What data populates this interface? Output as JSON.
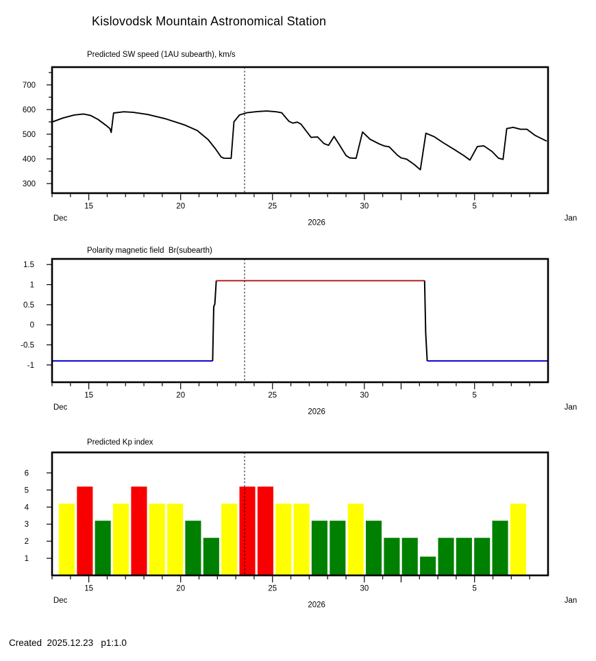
{
  "page": {
    "title": "Kislovodsk Mountain Astronomical Station",
    "created_line": "Created  2025.12.23   p1:1.0",
    "background": "#ffffff",
    "text_color": "#000000"
  },
  "colors": {
    "axis": "#000000",
    "sw_line": "#000000",
    "now_line": "#000000",
    "polarity_positive": "#b22222",
    "polarity_negative": "#0000cc",
    "polarity_transition": "#000000",
    "kp_yellow": "#ffff00",
    "kp_red": "#f80000",
    "kp_green": "#008000"
  },
  "now_marker_day": 23.48,
  "time_axis": {
    "day_min": 13,
    "day_max": 40,
    "minor_tick_step": 1,
    "major_ticks": [
      {
        "day": 15,
        "label": "15"
      },
      {
        "day": 20,
        "label": "20"
      },
      {
        "day": 25,
        "label": "25"
      },
      {
        "day": 30,
        "label": "30"
      },
      {
        "day": 32,
        "label": ""
      },
      {
        "day": 36,
        "label": "5"
      }
    ],
    "months": [
      {
        "label": "Dec",
        "day": 13.45
      },
      {
        "label": "Jan",
        "day": 41.23
      }
    ],
    "year": {
      "label": "2026",
      "day": 27.4
    }
  },
  "chart_data": [
    {
      "type": "line",
      "title": "Predicted SW speed (1AU subearth), km/s",
      "ylabel": "km/s",
      "ylim": [
        261,
        772
      ],
      "yticks": [
        {
          "v": 300,
          "label": "300"
        },
        {
          "v": 400,
          "label": "400"
        },
        {
          "v": 500,
          "label": "500"
        },
        {
          "v": 600,
          "label": "600"
        },
        {
          "v": 700,
          "label": "700"
        }
      ],
      "yticks_minor": [
        350,
        450,
        550,
        650,
        750
      ],
      "line_color": "sw_line",
      "x_days": [
        12.98,
        13.6,
        14.2,
        14.7,
        15.1,
        15.5,
        15.9,
        16.15,
        16.22,
        16.35,
        16.9,
        17.4,
        18.2,
        19.2,
        20.2,
        20.9,
        21.5,
        21.9,
        22.2,
        22.35,
        22.75,
        22.9,
        23.2,
        23.6,
        24.2,
        24.7,
        25.2,
        25.5,
        25.9,
        26.1,
        26.35,
        26.55,
        27.1,
        27.45,
        27.8,
        28.05,
        28.35,
        28.6,
        29.0,
        29.2,
        29.55,
        29.9,
        30.3,
        30.8,
        31.1,
        31.35,
        31.8,
        32.0,
        32.3,
        32.7,
        33.05,
        33.35,
        33.8,
        34.3,
        34.9,
        35.4,
        35.75,
        36.15,
        36.5,
        36.95,
        37.3,
        37.55,
        37.75,
        38.1,
        38.5,
        38.85,
        39.3,
        39.9
      ],
      "values": [
        549,
        566,
        578,
        582,
        576,
        560,
        538,
        523,
        507,
        586,
        591,
        589,
        580,
        562,
        538,
        515,
        478,
        440,
        408,
        403,
        402,
        550,
        578,
        587,
        592,
        594,
        591,
        587,
        552,
        545,
        549,
        541,
        487,
        489,
        462,
        455,
        491,
        462,
        414,
        404,
        402,
        509,
        480,
        461,
        452,
        449,
        415,
        404,
        399,
        378,
        356,
        504,
        490,
        465,
        438,
        414,
        395,
        450,
        453,
        430,
        403,
        398,
        523,
        528,
        520,
        520,
        495,
        473
      ]
    },
    {
      "type": "step",
      "title": "Polarity magnetic field  Br(subearth)",
      "ylim": [
        -1.43,
        1.64
      ],
      "yticks": [
        {
          "v": 1.5,
          "label": "1.5"
        },
        {
          "v": 1,
          "label": "1"
        },
        {
          "v": 0.5,
          "label": "0.5"
        },
        {
          "v": 0,
          "label": "0"
        },
        {
          "v": -0.5,
          "label": "-0.5"
        },
        {
          "v": -1,
          "label": "-1"
        }
      ],
      "yticks_minor": [],
      "segments": [
        {
          "color": "polarity_negative",
          "points": [
            [
              12.98,
              -0.9
            ],
            [
              21.74,
              -0.9
            ]
          ]
        },
        {
          "color": "polarity_transition",
          "points": [
            [
              21.74,
              -0.9
            ],
            [
              21.8,
              0.45
            ],
            [
              21.86,
              0.52
            ],
            [
              21.94,
              1.1
            ]
          ]
        },
        {
          "color": "polarity_positive",
          "points": [
            [
              21.94,
              1.1
            ],
            [
              33.28,
              1.1
            ]
          ]
        },
        {
          "color": "polarity_transition",
          "points": [
            [
              33.28,
              1.1
            ],
            [
              33.34,
              -0.2
            ],
            [
              33.42,
              -0.9
            ]
          ]
        },
        {
          "color": "polarity_negative",
          "points": [
            [
              33.42,
              -0.9
            ],
            [
              39.98,
              -0.9
            ]
          ]
        }
      ]
    },
    {
      "type": "bar",
      "title": "Predicted Kp index",
      "ylim": [
        0,
        7.2
      ],
      "yticks": [
        {
          "v": 1,
          "label": "1"
        },
        {
          "v": 2,
          "label": "2"
        },
        {
          "v": 3,
          "label": "3"
        },
        {
          "v": 4,
          "label": "4"
        },
        {
          "v": 5,
          "label": "5"
        },
        {
          "v": 6,
          "label": "6"
        }
      ],
      "yticks_minor": [],
      "bar_start_day": 13.37,
      "bar_slot_days": 0.983,
      "bar_width_days": 0.86,
      "bars": [
        {
          "kp": 4.2,
          "color": "kp_yellow"
        },
        {
          "kp": 5.2,
          "color": "kp_red"
        },
        {
          "kp": 3.2,
          "color": "kp_green"
        },
        {
          "kp": 4.2,
          "color": "kp_yellow"
        },
        {
          "kp": 5.2,
          "color": "kp_red"
        },
        {
          "kp": 4.2,
          "color": "kp_yellow"
        },
        {
          "kp": 4.2,
          "color": "kp_yellow"
        },
        {
          "kp": 3.2,
          "color": "kp_green"
        },
        {
          "kp": 2.2,
          "color": "kp_green"
        },
        {
          "kp": 4.2,
          "color": "kp_yellow"
        },
        {
          "kp": 5.2,
          "color": "kp_red"
        },
        {
          "kp": 5.2,
          "color": "kp_red"
        },
        {
          "kp": 4.2,
          "color": "kp_yellow"
        },
        {
          "kp": 4.2,
          "color": "kp_yellow"
        },
        {
          "kp": 3.2,
          "color": "kp_green"
        },
        {
          "kp": 3.2,
          "color": "kp_green"
        },
        {
          "kp": 4.2,
          "color": "kp_yellow"
        },
        {
          "kp": 3.2,
          "color": "kp_green"
        },
        {
          "kp": 2.2,
          "color": "kp_green"
        },
        {
          "kp": 2.2,
          "color": "kp_green"
        },
        {
          "kp": 1.1,
          "color": "kp_green"
        },
        {
          "kp": 2.2,
          "color": "kp_green"
        },
        {
          "kp": 2.2,
          "color": "kp_green"
        },
        {
          "kp": 2.2,
          "color": "kp_green"
        },
        {
          "kp": 3.2,
          "color": "kp_green"
        },
        {
          "kp": 4.2,
          "color": "kp_yellow"
        }
      ]
    }
  ]
}
